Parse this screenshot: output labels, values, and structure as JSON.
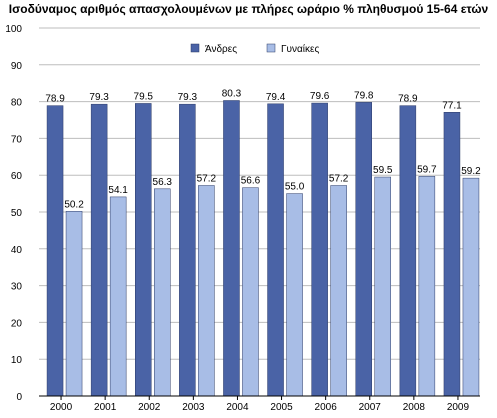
{
  "title": "Ισοδύναμος αριθμός απασχολουμένων με πλήρες ωράριο % πληθυσμού 15-64 ετών",
  "colors": {
    "men": "#4a63a6",
    "women": "#a8bde6",
    "grid": "#bdbdbd",
    "axis": "#000000"
  },
  "chart_data": {
    "type": "bar",
    "title": "Ισοδύναμος αριθμός απασχολουμένων με πλήρες ωράριο % πληθυσμού 15-64 ετών",
    "categories": [
      "2000",
      "2001",
      "2002",
      "2003",
      "2004",
      "2005",
      "2006",
      "2007",
      "2008",
      "2009"
    ],
    "series": [
      {
        "name": "Άνδρες",
        "values": [
          78.9,
          79.3,
          79.5,
          79.3,
          80.3,
          79.4,
          79.6,
          79.8,
          78.9,
          77.1
        ]
      },
      {
        "name": "Γυναίκες",
        "values": [
          50.2,
          54.1,
          56.3,
          57.2,
          56.6,
          55.0,
          57.2,
          59.5,
          59.7,
          59.2
        ]
      }
    ],
    "ylim": [
      0,
      100
    ],
    "yticks": [
      0,
      10,
      20,
      30,
      40,
      50,
      60,
      70,
      80,
      90,
      100
    ],
    "grid": true,
    "legend": "top-right",
    "xlabel": "",
    "ylabel": ""
  }
}
